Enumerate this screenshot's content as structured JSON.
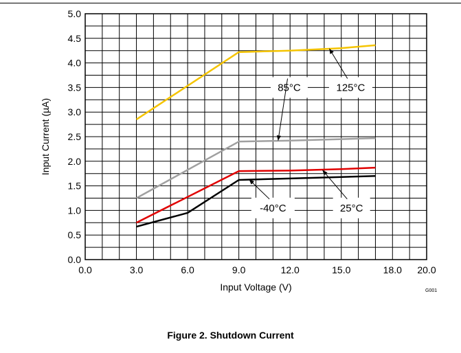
{
  "caption": "Figure 2. Shutdown Current",
  "figure_code": "G001",
  "chart_data": {
    "type": "line",
    "xlabel": "Input Voltage (V)",
    "ylabel": "Input Current (µA)",
    "xlim": [
      0,
      20
    ],
    "ylim": [
      0,
      5
    ],
    "x_ticks": [
      "0.0",
      "3.0",
      "6.0",
      "9.0",
      "12.0",
      "15.0",
      "18.0",
      "20.0"
    ],
    "y_ticks": [
      "0.0",
      "0.5",
      "1.0",
      "1.5",
      "2.0",
      "2.5",
      "3.0",
      "3.5",
      "4.0",
      "4.5",
      "5.0"
    ],
    "grid": true,
    "series": [
      {
        "name": "125°C",
        "color": "#f5c400",
        "x": [
          3,
          9,
          12,
          15,
          17
        ],
        "y": [
          2.85,
          4.22,
          4.25,
          4.3,
          4.36
        ]
      },
      {
        "name": "85°C",
        "color": "#a0a0a0",
        "x": [
          3,
          9,
          12,
          15,
          17
        ],
        "y": [
          1.25,
          2.4,
          2.42,
          2.45,
          2.47
        ]
      },
      {
        "name": "25°C",
        "color": "#e00000",
        "x": [
          3,
          9,
          12,
          15,
          17
        ],
        "y": [
          0.75,
          1.8,
          1.81,
          1.84,
          1.87
        ]
      },
      {
        "name": "-40°C",
        "color": "#000000",
        "x": [
          3,
          6,
          9,
          12,
          15,
          17
        ],
        "y": [
          0.67,
          0.95,
          1.62,
          1.65,
          1.68,
          1.7
        ]
      }
    ]
  }
}
